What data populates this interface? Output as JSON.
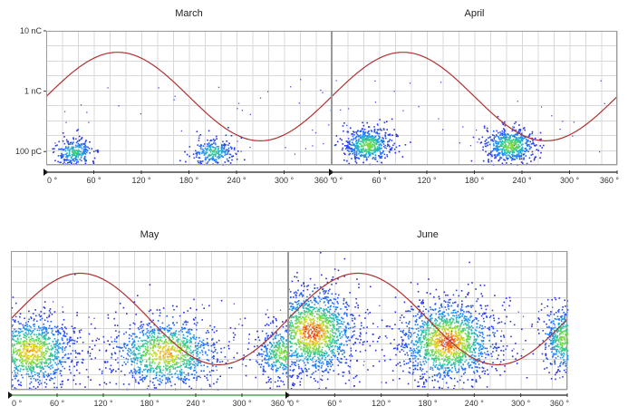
{
  "chart_data": [
    {
      "type": "scatter",
      "title": "March",
      "xlabel": "",
      "ylabel": "",
      "x_ticks": [
        "0 °",
        "60 °",
        "120 °",
        "180 °",
        "240 °",
        "300 °",
        "360 °"
      ],
      "y_ticks": [
        "10 nC",
        "1 nC",
        "100 pC"
      ],
      "y_scale": "log",
      "xlim": [
        0,
        360
      ],
      "ylim_pC": [
        60,
        10000
      ],
      "grid": true,
      "reference_wave": {
        "shape": "sine",
        "peak_deg": 90,
        "period_deg": 360,
        "color": "#b03030"
      },
      "clusters": [
        {
          "center_deg": 35,
          "center_pC": 100,
          "spread_deg": 12,
          "spread_decades": 0.12,
          "density": "low"
        },
        {
          "center_deg": 210,
          "center_pC": 100,
          "spread_deg": 14,
          "spread_decades": 0.12,
          "density": "low"
        }
      ]
    },
    {
      "type": "scatter",
      "title": "April",
      "x_ticks": [
        "0 °",
        "60 °",
        "120 °",
        "180 °",
        "240 °",
        "300 °",
        "360 °"
      ],
      "y_scale": "log",
      "xlim": [
        0,
        360
      ],
      "ylim_pC": [
        60,
        10000
      ],
      "grid": true,
      "reference_wave": {
        "shape": "sine",
        "peak_deg": 90,
        "period_deg": 360,
        "color": "#b03030"
      },
      "clusters": [
        {
          "center_deg": 45,
          "center_pC": 130,
          "spread_deg": 15,
          "spread_decades": 0.15,
          "density": "medium"
        },
        {
          "center_deg": 225,
          "center_pC": 130,
          "spread_deg": 16,
          "spread_decades": 0.15,
          "density": "medium"
        }
      ]
    },
    {
      "type": "scatter",
      "title": "May",
      "x_ticks": [
        "0 °",
        "60 °",
        "120 °",
        "180 °",
        "240 °",
        "300 °",
        "360 °"
      ],
      "xlim": [
        0,
        360
      ],
      "grid": true,
      "reference_wave": {
        "shape": "sine",
        "peak_deg": 90,
        "period_deg": 360,
        "color": "#b03030"
      },
      "clusters": [
        {
          "center_deg": 25,
          "level": 0.28,
          "spread_deg": 30,
          "spread_level": 0.13,
          "density": "high"
        },
        {
          "center_deg": 200,
          "level": 0.27,
          "spread_deg": 36,
          "spread_level": 0.13,
          "density": "high"
        },
        {
          "center_deg": 352,
          "level": 0.27,
          "spread_deg": 18,
          "spread_level": 0.1,
          "density": "medium"
        }
      ]
    },
    {
      "type": "scatter",
      "title": "June",
      "x_ticks": [
        "0 °",
        "60 °",
        "120 °",
        "180 °",
        "240 °",
        "300 °",
        "360 °"
      ],
      "xlim": [
        0,
        360
      ],
      "grid": true,
      "reference_wave": {
        "shape": "sine",
        "peak_deg": 90,
        "period_deg": 360,
        "color": "#b03030"
      },
      "clusters": [
        {
          "center_deg": 30,
          "level": 0.42,
          "spread_deg": 30,
          "spread_level": 0.16,
          "density": "very high"
        },
        {
          "center_deg": 205,
          "level": 0.35,
          "spread_deg": 32,
          "spread_level": 0.15,
          "density": "very high"
        },
        {
          "center_deg": 355,
          "level": 0.37,
          "spread_deg": 14,
          "spread_level": 0.12,
          "density": "medium"
        }
      ]
    }
  ]
}
